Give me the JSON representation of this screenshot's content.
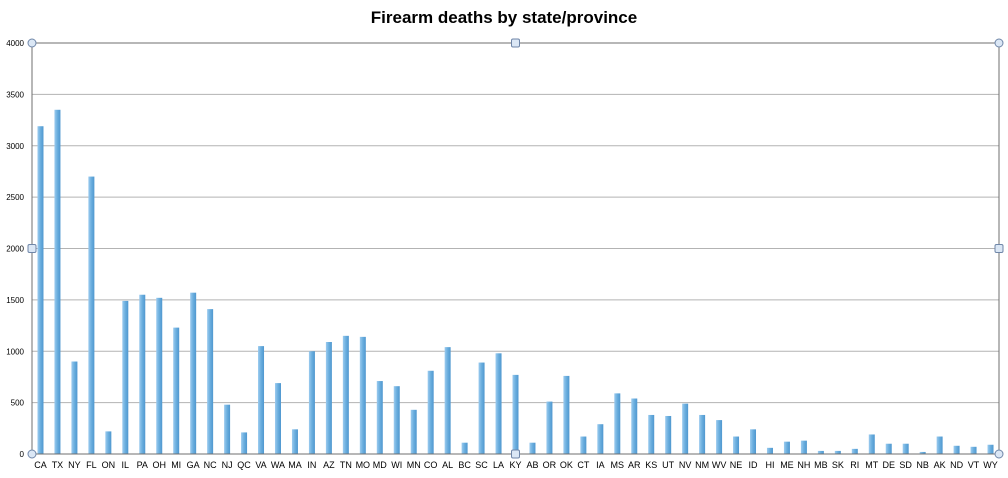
{
  "chart_data": {
    "type": "bar",
    "title": "Firearm deaths by state/province",
    "xlabel": "",
    "ylabel": "",
    "ylim": [
      0,
      4000
    ],
    "yticks": [
      0,
      500,
      1000,
      1500,
      2000,
      2500,
      3000,
      3500,
      4000
    ],
    "grid": true,
    "legend": "none",
    "bar_color": "#6aaede",
    "categories": [
      "CA",
      "TX",
      "NY",
      "FL",
      "ON",
      "IL",
      "PA",
      "OH",
      "MI",
      "GA",
      "NC",
      "NJ",
      "QC",
      "VA",
      "WA",
      "MA",
      "IN",
      "AZ",
      "TN",
      "MO",
      "MD",
      "WI",
      "MN",
      "CO",
      "AL",
      "BC",
      "SC",
      "LA",
      "KY",
      "AB",
      "OR",
      "OK",
      "CT",
      "IA",
      "MS",
      "AR",
      "KS",
      "UT",
      "NV",
      "NM",
      "WV",
      "NE",
      "ID",
      "HI",
      "ME",
      "NH",
      "MB",
      "SK",
      "RI",
      "MT",
      "DE",
      "SD",
      "NB",
      "AK",
      "ND",
      "VT",
      "WY"
    ],
    "values": [
      3190,
      3350,
      900,
      2700,
      220,
      1490,
      1550,
      1520,
      1230,
      1570,
      1410,
      480,
      210,
      1050,
      690,
      240,
      1000,
      1090,
      1150,
      1140,
      710,
      660,
      430,
      810,
      1040,
      110,
      890,
      980,
      770,
      110,
      510,
      760,
      170,
      290,
      590,
      540,
      380,
      370,
      490,
      380,
      330,
      170,
      240,
      60,
      120,
      130,
      30,
      30,
      50,
      190,
      100,
      100,
      20,
      170,
      80,
      70,
      90
    ]
  }
}
